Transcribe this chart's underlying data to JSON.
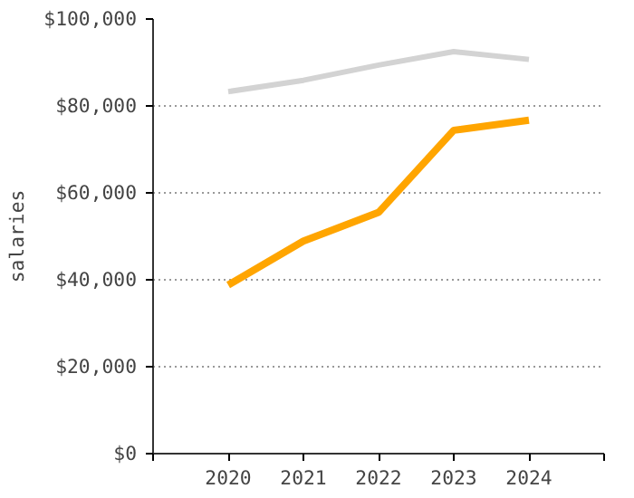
{
  "chart_data": {
    "type": "line",
    "ylabel": "salaries",
    "x": [
      2020,
      2021,
      2022,
      2023,
      2024
    ],
    "series": [
      {
        "color": "#d3d3d3",
        "values": [
          83300,
          85900,
          89400,
          92500,
          90700
        ]
      },
      {
        "color": "#ffa500",
        "values": [
          38800,
          48900,
          55500,
          74400,
          76700
        ]
      }
    ],
    "xlim": [
      2019,
      2025
    ],
    "xticks": [
      {
        "value": 2019,
        "label": null
      },
      2020,
      2021,
      2022,
      2023,
      2024,
      {
        "value": 2025,
        "label": null
      }
    ],
    "ylim": [
      0,
      100000
    ],
    "yticks": [
      {
        "value": 0,
        "label": "$0"
      },
      {
        "value": 20000,
        "label": "$20,000"
      },
      {
        "value": 40000,
        "label": "$40,000"
      },
      {
        "value": 60000,
        "label": "$60,000"
      },
      {
        "value": 80000,
        "label": "$80,000"
      },
      {
        "value": 100000,
        "label": "$100,000"
      }
    ],
    "grid": "y",
    "marker": "none",
    "line_style": "solid"
  }
}
